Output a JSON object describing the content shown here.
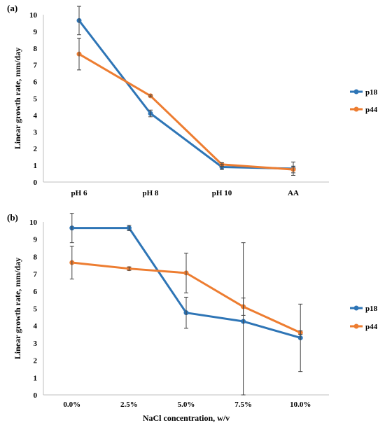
{
  "chart_data": [
    {
      "panel_label": "(a)",
      "type": "line",
      "categories": [
        "pH 6",
        "pH 8",
        "pH 10",
        "AA"
      ],
      "ylabel": "Linear growth rate, mm/day",
      "xlabel": "",
      "ylim": [
        0,
        10
      ],
      "yticks": [
        "0",
        "1",
        "2",
        "3",
        "4",
        "5",
        "6",
        "7",
        "8",
        "9",
        "10"
      ],
      "grid": false,
      "legend_position": "right",
      "series": [
        {
          "name": "p18",
          "color": "#2E75B6",
          "values": [
            9.65,
            4.1,
            0.9,
            0.8
          ],
          "errors": [
            0.85,
            0.2,
            0.15,
            0.4
          ]
        },
        {
          "name": "p44",
          "color": "#ED7D31",
          "values": [
            7.65,
            5.15,
            1.05,
            0.75
          ],
          "errors": [
            0.95,
            0.05,
            0.1,
            0.2
          ]
        }
      ]
    },
    {
      "panel_label": "(b)",
      "type": "line",
      "categories": [
        "0.0%",
        "2.5%",
        "5.0%",
        "7.5%",
        "10.0%"
      ],
      "ylabel": "Linear growth rate, mm/day",
      "xlabel": "NaCl concentration, w/v",
      "ylim": [
        0,
        10
      ],
      "yticks": [
        "0",
        "1",
        "2",
        "3",
        "4",
        "5",
        "6",
        "7",
        "8",
        "9",
        "10"
      ],
      "grid": false,
      "legend_position": "right",
      "series": [
        {
          "name": "p18",
          "color": "#2E75B6",
          "values": [
            9.65,
            9.65,
            4.75,
            4.25,
            3.3
          ],
          "errors": [
            0.85,
            0.15,
            0.9,
            4.55,
            1.95
          ]
        },
        {
          "name": "p44",
          "color": "#ED7D31",
          "values": [
            7.65,
            7.3,
            7.05,
            5.1,
            3.6
          ],
          "errors": [
            0.95,
            0.1,
            1.15,
            0.5,
            0.1
          ]
        }
      ]
    }
  ]
}
